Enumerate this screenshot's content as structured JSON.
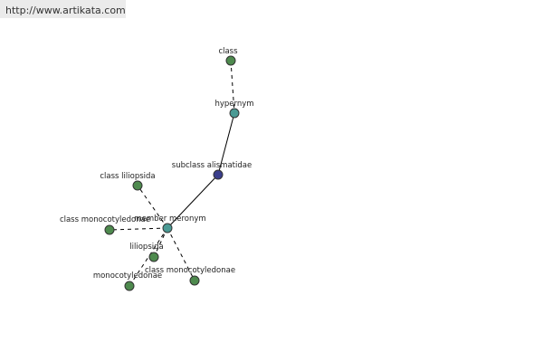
{
  "watermark": "http://www.artikata.com",
  "nodes": [
    {
      "label": "class"
    },
    {
      "label": "hypernym"
    },
    {
      "label": "subclass alismatidae"
    },
    {
      "label": "member meronym"
    },
    {
      "label": "class liliopsida"
    },
    {
      "label": "class monocotyledonae"
    },
    {
      "label": "liliopsida"
    },
    {
      "label": "monocotyledonae"
    },
    {
      "label": "class monocotyledonae"
    }
  ]
}
